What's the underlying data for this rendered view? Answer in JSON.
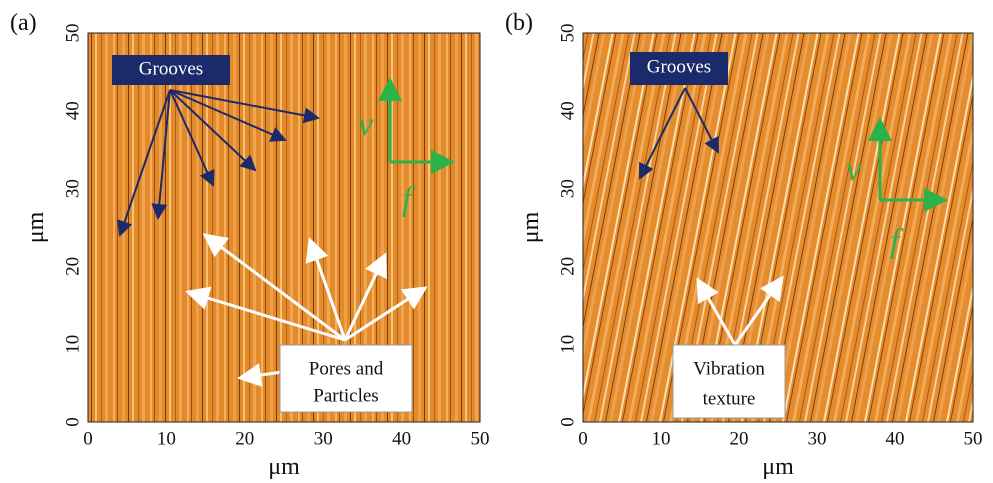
{
  "panels": [
    {
      "label": "(a)",
      "ylabel": "μm",
      "xlabel": "μm",
      "xticks": [
        0,
        10,
        20,
        30,
        40,
        50
      ],
      "yticks": [
        0,
        10,
        20,
        30,
        40,
        50
      ],
      "callouts": {
        "grooves": "Grooves",
        "features": [
          "Pores and",
          "Particles"
        ],
        "v": "v",
        "f": "f"
      }
    },
    {
      "label": "(b)",
      "ylabel": "μm",
      "xlabel": "μm",
      "xticks": [
        0,
        10,
        20,
        30,
        40,
        50
      ],
      "yticks": [
        0,
        10,
        20,
        30,
        40,
        50
      ],
      "callouts": {
        "grooves": "Grooves",
        "features": [
          "Vibration",
          "texture"
        ],
        "v": "v",
        "f": "f"
      }
    }
  ]
}
